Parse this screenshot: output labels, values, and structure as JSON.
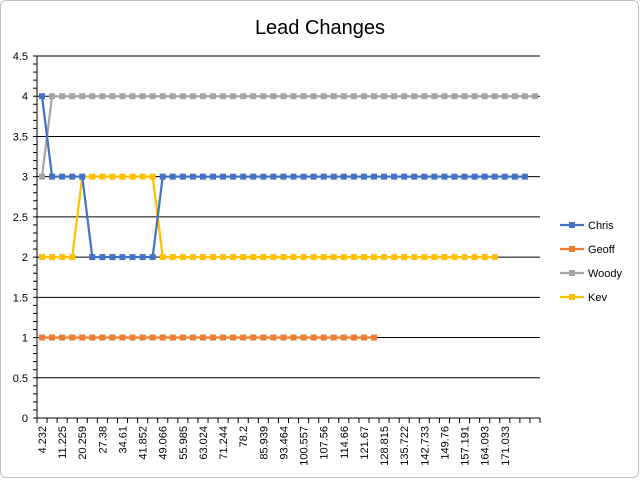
{
  "chart_data": {
    "type": "line",
    "title": "Lead Changes",
    "xlabel": "",
    "ylabel": "",
    "ylim": [
      0,
      4.5
    ],
    "y_ticks": [
      "0",
      "0.5",
      "1",
      "1.5",
      "2",
      "2.5",
      "3",
      "3.5",
      "4",
      "4.5"
    ],
    "x_tick_labels": [
      "4.232",
      "11.225",
      "20.259",
      "27.38",
      "34.61",
      "41.852",
      "49.066",
      "55.985",
      "63.024",
      "71.244",
      "78.2",
      "85.939",
      "93.464",
      "100.557",
      "107.56",
      "114.66",
      "121.67",
      "128.815",
      "135.722",
      "142.733",
      "149.76",
      "157.191",
      "164.093",
      "171.033"
    ],
    "grid": true,
    "legend_position": "right",
    "series": [
      {
        "name": "Chris",
        "color": "#4472C4",
        "values": [
          4,
          3,
          3,
          3,
          3,
          2,
          2,
          2,
          2,
          2,
          2,
          2,
          3,
          3,
          3,
          3,
          3,
          3,
          3,
          3,
          3,
          3,
          3,
          3,
          3,
          3,
          3,
          3,
          3,
          3,
          3,
          3,
          3,
          3,
          3,
          3,
          3,
          3,
          3,
          3,
          3,
          3,
          3,
          3,
          3,
          3,
          3,
          3,
          3
        ]
      },
      {
        "name": "Geoff",
        "color": "#ED7D31",
        "values": [
          1,
          1,
          1,
          1,
          1,
          1,
          1,
          1,
          1,
          1,
          1,
          1,
          1,
          1,
          1,
          1,
          1,
          1,
          1,
          1,
          1,
          1,
          1,
          1,
          1,
          1,
          1,
          1,
          1,
          1,
          1,
          1,
          1,
          1
        ]
      },
      {
        "name": "Woody",
        "color": "#A5A5A5",
        "values": [
          3,
          4,
          4,
          4,
          4,
          4,
          4,
          4,
          4,
          4,
          4,
          4,
          4,
          4,
          4,
          4,
          4,
          4,
          4,
          4,
          4,
          4,
          4,
          4,
          4,
          4,
          4,
          4,
          4,
          4,
          4,
          4,
          4,
          4,
          4,
          4,
          4,
          4,
          4,
          4,
          4,
          4,
          4,
          4,
          4,
          4,
          4,
          4,
          4,
          4
        ]
      },
      {
        "name": "Kev",
        "color": "#FFC000",
        "values": [
          2,
          2,
          2,
          2,
          3,
          3,
          3,
          3,
          3,
          3,
          3,
          3,
          2,
          2,
          2,
          2,
          2,
          2,
          2,
          2,
          2,
          2,
          2,
          2,
          2,
          2,
          2,
          2,
          2,
          2,
          2,
          2,
          2,
          2,
          2,
          2,
          2,
          2,
          2,
          2,
          2,
          2,
          2,
          2,
          2,
          2
        ]
      }
    ]
  }
}
